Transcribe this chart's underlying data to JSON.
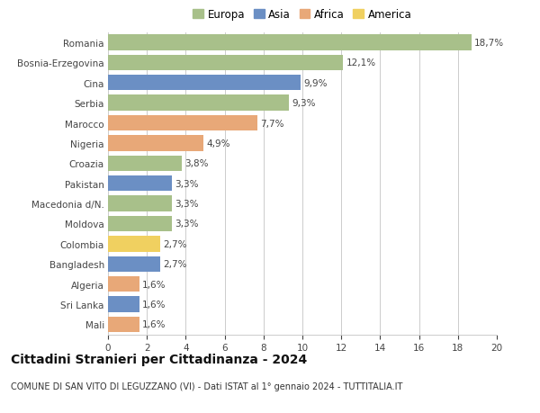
{
  "categories": [
    "Romania",
    "Bosnia-Erzegovina",
    "Cina",
    "Serbia",
    "Marocco",
    "Nigeria",
    "Croazia",
    "Pakistan",
    "Macedonia d/N.",
    "Moldova",
    "Colombia",
    "Bangladesh",
    "Algeria",
    "Sri Lanka",
    "Mali"
  ],
  "values": [
    18.7,
    12.1,
    9.9,
    9.3,
    7.7,
    4.9,
    3.8,
    3.3,
    3.3,
    3.3,
    2.7,
    2.7,
    1.6,
    1.6,
    1.6
  ],
  "labels": [
    "18,7%",
    "12,1%",
    "9,9%",
    "9,3%",
    "7,7%",
    "4,9%",
    "3,8%",
    "3,3%",
    "3,3%",
    "3,3%",
    "2,7%",
    "2,7%",
    "1,6%",
    "1,6%",
    "1,6%"
  ],
  "continents": [
    "Europa",
    "Europa",
    "Asia",
    "Europa",
    "Africa",
    "Africa",
    "Europa",
    "Asia",
    "Europa",
    "Europa",
    "America",
    "Asia",
    "Africa",
    "Asia",
    "Africa"
  ],
  "continent_colors": {
    "Europa": "#a8c08a",
    "Asia": "#6b8fc4",
    "Africa": "#e8a878",
    "America": "#f0d060"
  },
  "legend_order": [
    "Europa",
    "Asia",
    "Africa",
    "America"
  ],
  "title": "Cittadini Stranieri per Cittadinanza - 2024",
  "subtitle": "COMUNE DI SAN VITO DI LEGUZZANO (VI) - Dati ISTAT al 1° gennaio 2024 - TUTTITALIA.IT",
  "xlim": [
    0,
    20
  ],
  "xticks": [
    0,
    2,
    4,
    6,
    8,
    10,
    12,
    14,
    16,
    18,
    20
  ],
  "background_color": "#ffffff",
  "grid_color": "#cccccc",
  "bar_height": 0.78,
  "label_fontsize": 7.5,
  "tick_fontsize": 7.5,
  "title_fontsize": 10,
  "subtitle_fontsize": 7,
  "legend_fontsize": 8.5
}
